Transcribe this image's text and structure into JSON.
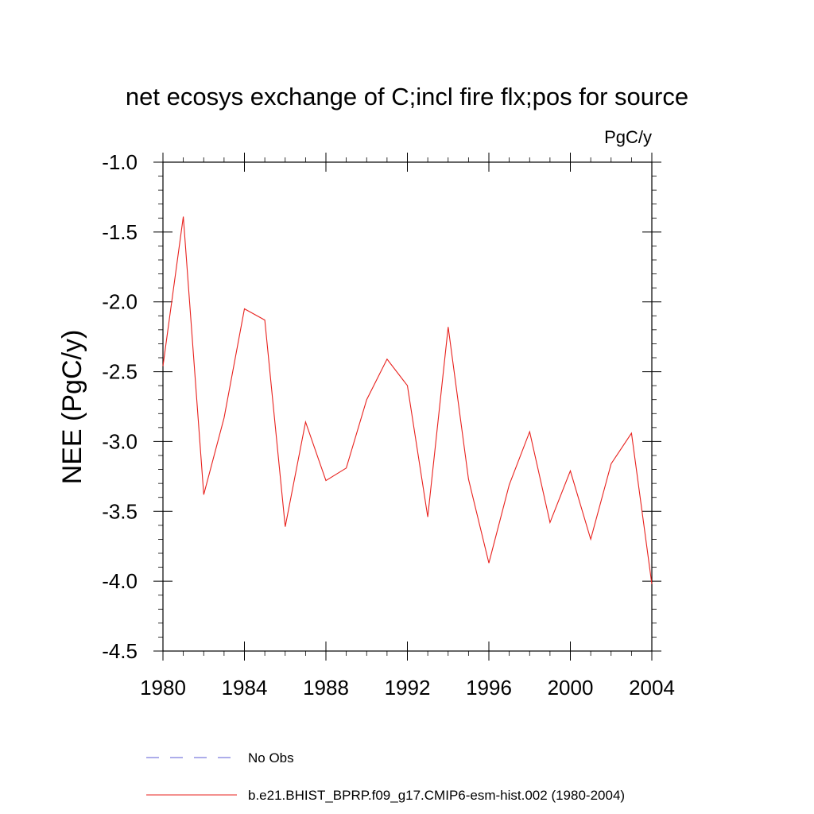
{
  "chart_data": {
    "type": "line",
    "title": "net ecosys exchange of C;incl fire flx;pos for source",
    "units": "PgC/y",
    "ylabel": "NEE  (PgC/y)",
    "xlabel": "",
    "xlim": [
      1980,
      2004
    ],
    "ylim": [
      -4.5,
      -1.0
    ],
    "x_ticks": [
      1980,
      1984,
      1988,
      1992,
      1996,
      2000,
      2004
    ],
    "x_tick_labels": [
      "1980",
      "1984",
      "1988",
      "1992",
      "1996",
      "2000",
      "2004"
    ],
    "y_ticks": [
      -1.0,
      -1.5,
      -2.0,
      -2.5,
      -3.0,
      -3.5,
      -4.0,
      -4.5
    ],
    "y_tick_labels": [
      "-1.0",
      "-1.5",
      "-2.0",
      "-2.5",
      "-3.0",
      "-3.5",
      "-4.0",
      "-4.5"
    ],
    "grid": false,
    "legend_placement": "bottom",
    "series": [
      {
        "name": "b.e21.BHIST_BPRP.f09_g17.CMIP6-esm-hist.002 (1980-2004)",
        "color": "#e8211d",
        "style": "solid",
        "x": [
          1980,
          1981,
          1982,
          1983,
          1984,
          1985,
          1986,
          1987,
          1988,
          1989,
          1990,
          1991,
          1992,
          1993,
          1994,
          1995,
          1996,
          1997,
          1998,
          1999,
          2000,
          2001,
          2002,
          2003,
          2004
        ],
        "y": [
          -2.46,
          -1.39,
          -3.38,
          -2.83,
          -2.05,
          -2.13,
          -3.61,
          -2.86,
          -3.28,
          -3.19,
          -2.7,
          -2.41,
          -2.6,
          -3.54,
          -2.18,
          -3.27,
          -3.87,
          -3.31,
          -2.93,
          -3.58,
          -3.21,
          -3.7,
          -3.16,
          -2.94,
          -4.02
        ]
      }
    ],
    "legend": [
      {
        "label": "No Obs",
        "color": "#5b5bd6",
        "style": "dashed"
      },
      {
        "label": "b.e21.BHIST_BPRP.f09_g17.CMIP6-esm-hist.002 (1980-2004)",
        "color": "#e8211d",
        "style": "solid"
      }
    ]
  }
}
